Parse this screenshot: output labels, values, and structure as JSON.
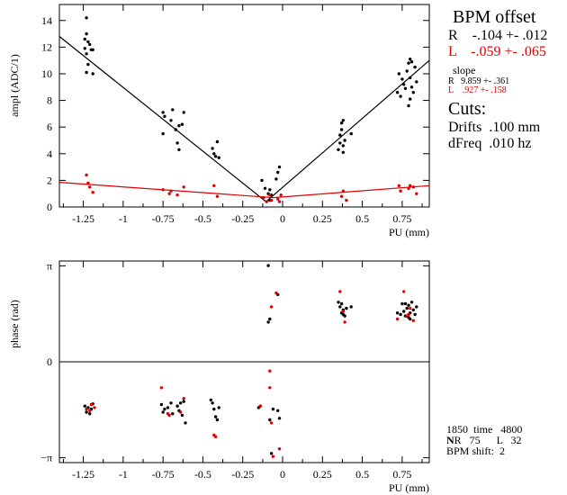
{
  "panel": {
    "title": "BPM offset",
    "offset_R": "R    -.104 +- .012",
    "offset_L": "L    -.059 +- .065",
    "slope_label": "slope",
    "slope_R": "R   9.859 +- .361",
    "slope_L": "L    .927 +- .158",
    "cuts_label": "Cuts:",
    "drifts": "Drifts  .100 mm",
    "dfreq": "dFreq  .010 hz",
    "time_line": "1850  time   4800",
    "n_line_prefix": "N",
    "n_line": "R   75      L   32",
    "bpm_shift": "BPM shift:  2"
  },
  "colors": {
    "R": "#000000",
    "L": "#e00000"
  },
  "chart_data": [
    {
      "type": "scatter",
      "xlabel": "PU (mm)",
      "ylabel": "ampl (ADC/1)",
      "xlim": [
        -1.4,
        0.92
      ],
      "ylim": [
        0,
        15.2
      ],
      "x_ticks": [
        -1.25,
        -1,
        -0.75,
        -0.5,
        -0.25,
        0,
        0.25,
        0.5,
        0.75
      ],
      "x_tick_labels": [
        "-1.25",
        "-1",
        "-0.75",
        "-0.5",
        "-0.25",
        "0",
        "0.25",
        "0.5",
        "0.75"
      ],
      "y_ticks": [
        0,
        2,
        4,
        6,
        8,
        10,
        12,
        14
      ],
      "y_tick_labels": [
        "0",
        "2",
        "4",
        "6",
        "8",
        "10",
        "12",
        "14"
      ],
      "fits": [
        {
          "name": "R",
          "points": [
            [
              -1.4,
              12.8
            ],
            [
              -0.104,
              0.4
            ],
            [
              0.92,
              11.0
            ]
          ]
        },
        {
          "name": "L",
          "points": [
            [
              -1.4,
              1.85
            ],
            [
              -0.059,
              0.7
            ],
            [
              0.92,
              1.6
            ]
          ]
        }
      ],
      "series": [
        {
          "name": "R",
          "points": [
            [
              -1.23,
              14.2
            ],
            [
              -1.23,
              13.0
            ],
            [
              -1.24,
              12.6
            ],
            [
              -1.22,
              12.4
            ],
            [
              -1.21,
              12.2
            ],
            [
              -1.24,
              11.9
            ],
            [
              -1.2,
              11.8
            ],
            [
              -1.23,
              11.5
            ],
            [
              -1.22,
              10.7
            ],
            [
              -1.23,
              10.1
            ],
            [
              -1.19,
              10.0
            ],
            [
              -1.19,
              11.8
            ],
            [
              -0.75,
              7.1
            ],
            [
              -0.74,
              6.8
            ],
            [
              -0.7,
              6.5
            ],
            [
              -0.69,
              7.3
            ],
            [
              -0.65,
              6.1
            ],
            [
              -0.67,
              5.8
            ],
            [
              -0.62,
              7.1
            ],
            [
              -0.63,
              6.2
            ],
            [
              -0.75,
              5.5
            ],
            [
              -0.66,
              4.8
            ],
            [
              -0.65,
              4.3
            ],
            [
              -0.44,
              4.4
            ],
            [
              -0.43,
              4.0
            ],
            [
              -0.42,
              3.8
            ],
            [
              -0.41,
              4.9
            ],
            [
              -0.4,
              3.7
            ],
            [
              -0.13,
              2.0
            ],
            [
              -0.11,
              1.4
            ],
            [
              -0.09,
              1.0
            ],
            [
              -0.08,
              0.5
            ],
            [
              -0.08,
              1.3
            ],
            [
              -0.07,
              0.9
            ],
            [
              -0.04,
              2.1
            ],
            [
              -0.03,
              2.6
            ],
            [
              -0.02,
              3.0
            ],
            [
              0.35,
              4.3
            ],
            [
              0.36,
              4.8
            ],
            [
              0.36,
              5.4
            ],
            [
              0.37,
              6.3
            ],
            [
              0.38,
              6.5
            ],
            [
              0.38,
              4.6
            ],
            [
              0.39,
              5.0
            ],
            [
              0.38,
              4.1
            ],
            [
              0.43,
              5.5
            ],
            [
              0.37,
              5.8
            ],
            [
              0.72,
              8.6
            ],
            [
              0.73,
              10.0
            ],
            [
              0.74,
              8.3
            ],
            [
              0.75,
              9.6
            ],
            [
              0.76,
              9.2
            ],
            [
              0.77,
              8.9
            ],
            [
              0.78,
              10.2
            ],
            [
              0.79,
              10.8
            ],
            [
              0.8,
              11.1
            ],
            [
              0.8,
              9.7
            ],
            [
              0.81,
              9.0
            ],
            [
              0.82,
              8.6
            ],
            [
              0.79,
              7.6
            ],
            [
              0.8,
              8.1
            ],
            [
              0.84,
              9.4
            ],
            [
              0.83,
              10.5
            ],
            [
              0.81,
              10.9
            ]
          ]
        },
        {
          "name": "L",
          "points": [
            [
              -1.23,
              2.4
            ],
            [
              -1.22,
              1.8
            ],
            [
              -1.21,
              1.5
            ],
            [
              -1.19,
              1.1
            ],
            [
              -0.75,
              1.3
            ],
            [
              -0.71,
              1.0
            ],
            [
              -0.7,
              1.2
            ],
            [
              -0.66,
              0.9
            ],
            [
              -0.62,
              1.5
            ],
            [
              -0.43,
              1.6
            ],
            [
              -0.41,
              0.8
            ],
            [
              -0.12,
              0.7
            ],
            [
              -0.1,
              0.4
            ],
            [
              -0.08,
              0.9
            ],
            [
              -0.07,
              0.5
            ],
            [
              -0.03,
              0.6
            ],
            [
              -0.01,
              0.9
            ],
            [
              -0.02,
              0.4
            ],
            [
              0.37,
              0.8
            ],
            [
              0.38,
              1.2
            ],
            [
              0.4,
              0.5
            ],
            [
              0.73,
              1.6
            ],
            [
              0.74,
              1.2
            ],
            [
              0.79,
              1.4
            ],
            [
              0.8,
              1.6
            ],
            [
              0.82,
              1.5
            ],
            [
              0.84,
              1.0
            ]
          ]
        }
      ]
    },
    {
      "type": "scatter",
      "xlabel": "PU (mm)",
      "ylabel": "phase (rad)",
      "xlim": [
        -1.4,
        0.92
      ],
      "ylim": [
        -3.3,
        3.3
      ],
      "x_ticks": [
        -1.25,
        -1,
        -0.75,
        -0.5,
        -0.25,
        0,
        0.25,
        0.5,
        0.75
      ],
      "x_tick_labels": [
        "-1.25",
        "-1",
        "-0.75",
        "-0.5",
        "-0.25",
        "0",
        "0.25",
        "0.5",
        "0.75"
      ],
      "y_ticks": [
        -3.1416,
        0,
        3.1416
      ],
      "y_tick_labels": [
        "−π",
        "0",
        "π"
      ],
      "zero_line": true,
      "series": [
        {
          "name": "R",
          "points": [
            [
              -1.24,
              -1.45
            ],
            [
              -1.23,
              -1.65
            ],
            [
              -1.22,
              -1.5
            ],
            [
              -1.21,
              -1.7
            ],
            [
              -1.2,
              -1.55
            ],
            [
              -1.19,
              -1.38
            ],
            [
              -0.76,
              -1.4
            ],
            [
              -0.75,
              -1.65
            ],
            [
              -0.74,
              -1.55
            ],
            [
              -0.72,
              -1.5
            ],
            [
              -0.7,
              -1.35
            ],
            [
              -0.69,
              -1.7
            ],
            [
              -0.66,
              -1.45
            ],
            [
              -0.65,
              -1.6
            ],
            [
              -0.64,
              -1.35
            ],
            [
              -0.63,
              -1.75
            ],
            [
              -0.62,
              -1.3
            ],
            [
              -0.61,
              -2.0
            ],
            [
              -0.45,
              -1.25
            ],
            [
              -0.44,
              -1.35
            ],
            [
              -0.43,
              -1.55
            ],
            [
              -0.42,
              -1.8
            ],
            [
              -0.41,
              -1.9
            ],
            [
              -0.4,
              -1.5
            ],
            [
              -0.15,
              -1.5
            ],
            [
              -0.14,
              -1.45
            ],
            [
              -0.09,
              3.15
            ],
            [
              -0.08,
              1.4
            ],
            [
              -0.09,
              1.3
            ],
            [
              -0.08,
              -1.9
            ],
            [
              -0.07,
              -3.0
            ],
            [
              -0.06,
              -1.55
            ],
            [
              -0.03,
              -1.6
            ],
            [
              -0.02,
              -1.85
            ],
            [
              -0.03,
              2.2
            ],
            [
              0.35,
              1.95
            ],
            [
              0.36,
              1.8
            ],
            [
              0.37,
              1.6
            ],
            [
              0.38,
              1.7
            ],
            [
              0.37,
              1.9
            ],
            [
              0.39,
              1.5
            ],
            [
              0.4,
              1.75
            ],
            [
              0.38,
              1.55
            ],
            [
              0.43,
              1.8
            ],
            [
              0.72,
              1.6
            ],
            [
              0.74,
              1.55
            ],
            [
              0.75,
              1.9
            ],
            [
              0.76,
              1.65
            ],
            [
              0.77,
              1.5
            ],
            [
              0.78,
              1.75
            ],
            [
              0.79,
              1.85
            ],
            [
              0.8,
              1.6
            ],
            [
              0.81,
              1.95
            ],
            [
              0.82,
              1.7
            ],
            [
              0.83,
              1.55
            ],
            [
              0.84,
              1.8
            ],
            [
              0.79,
              1.45
            ],
            [
              0.8,
              1.4
            ],
            [
              0.77,
              1.9
            ]
          ]
        },
        {
          "name": "L",
          "points": [
            [
              -1.23,
              -1.55
            ],
            [
              -1.21,
              -1.6
            ],
            [
              -1.2,
              -1.4
            ],
            [
              -1.18,
              -1.5
            ],
            [
              -0.76,
              -0.85
            ],
            [
              -0.72,
              -1.7
            ],
            [
              -0.71,
              -1.75
            ],
            [
              -0.64,
              -1.65
            ],
            [
              -0.62,
              -1.2
            ],
            [
              -0.43,
              -2.4
            ],
            [
              -0.42,
              -2.45
            ],
            [
              -0.14,
              -1.45
            ],
            [
              -0.08,
              -0.3
            ],
            [
              -0.08,
              -0.85
            ],
            [
              -0.07,
              -2.0
            ],
            [
              -0.07,
              1.8
            ],
            [
              -0.06,
              -3.1
            ],
            [
              -0.04,
              2.25
            ],
            [
              -0.02,
              -2.85
            ],
            [
              0.36,
              2.3
            ],
            [
              0.38,
              1.65
            ],
            [
              0.39,
              1.3
            ],
            [
              0.72,
              1.4
            ],
            [
              0.76,
              2.3
            ],
            [
              0.78,
              1.5
            ],
            [
              0.79,
              1.55
            ],
            [
              0.8,
              1.75
            ],
            [
              0.82,
              1.35
            ]
          ]
        }
      ]
    }
  ]
}
